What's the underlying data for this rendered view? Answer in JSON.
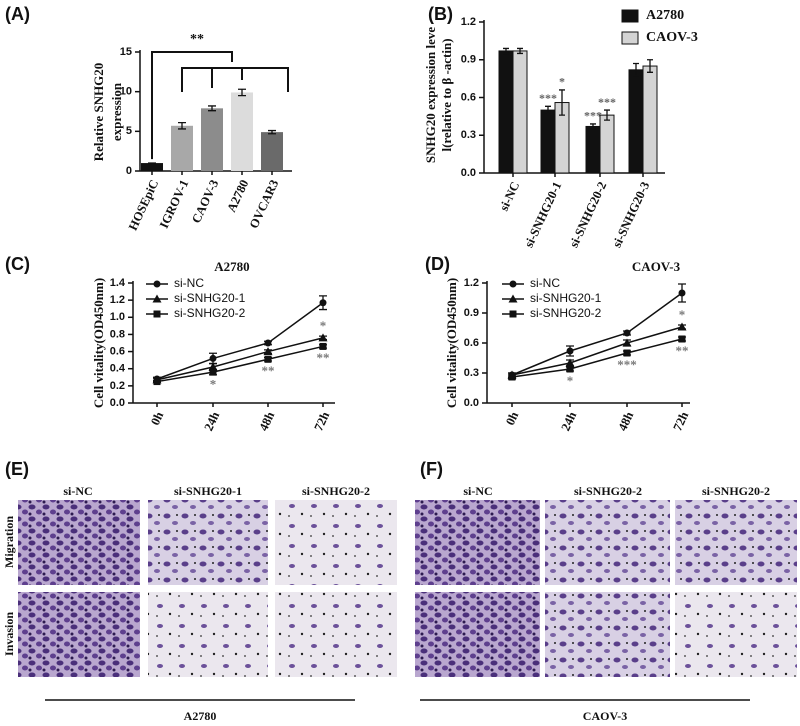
{
  "chart_data": [
    {
      "panel": "(A)",
      "type": "bar",
      "ylabel": [
        "Relative SNHG20",
        "expression"
      ],
      "categories": [
        "HOSEpiC",
        "IGROV-1",
        "CAOV-3",
        "A2780",
        "OVCAR3"
      ],
      "values": [
        1,
        5.7,
        7.9,
        9.9,
        4.9
      ],
      "errors": [
        0,
        0.4,
        0.3,
        0.4,
        0.2
      ],
      "colors": [
        "#111111",
        "#a8a8a8",
        "#8c8c8c",
        "#dcdcdc",
        "#6a6a6a"
      ],
      "ylim": [
        0,
        15
      ],
      "yticks": [
        0,
        5,
        10,
        15
      ],
      "annotations": [
        "**"
      ]
    },
    {
      "panel": "(B)",
      "type": "bar",
      "ylabel": [
        "SNHG20 expression leve",
        "l(relative to β -actin)"
      ],
      "categories": [
        "si-NC",
        "si-SNHG20-1",
        "si-SNHG20-2",
        "si-SNHG20-3"
      ],
      "series": [
        {
          "name": "A2780",
          "color": "#111111",
          "values": [
            0.97,
            0.5,
            0.37,
            0.82
          ],
          "errors": [
            0.02,
            0.03,
            0.02,
            0.05
          ],
          "value_annotations": [
            null,
            "***",
            "***",
            null
          ]
        },
        {
          "name": "CAOV-3",
          "color": "#d4d4d4",
          "values": [
            0.97,
            0.56,
            0.46,
            0.85
          ],
          "errors": [
            0.02,
            0.1,
            0.04,
            0.05
          ],
          "value_annotations": [
            null,
            "*",
            "***",
            null
          ]
        }
      ],
      "ylim": [
        0,
        1.2
      ],
      "yticks": [
        {
          "value": 0,
          "label": "0.0"
        },
        0.3,
        0.6,
        0.9,
        1.2
      ],
      "legend": "upper right"
    },
    {
      "panel": "(C)",
      "type": "line",
      "title": "A2780",
      "ylabel": "Cell vitality(OD450nm)",
      "categories": [
        "0h",
        "24h",
        "48h",
        "72h"
      ],
      "series": [
        {
          "name": "si-NC",
          "color": "#111111",
          "marker": "circle",
          "values": [
            0.28,
            0.52,
            0.7,
            1.17
          ],
          "errors": [
            0.02,
            0.06,
            0.02,
            0.08
          ],
          "value_annotations": [
            null,
            null,
            null,
            null
          ]
        },
        {
          "name": "si-SNHG20-1",
          "color": "#111111",
          "marker": "triangle",
          "values": [
            0.27,
            0.42,
            0.6,
            0.76
          ],
          "errors": [
            0.02,
            0.04,
            0.02,
            0.02
          ],
          "value_annotations": [
            null,
            null,
            null,
            "*"
          ]
        },
        {
          "name": "si-SNHG20-2",
          "color": "#111111",
          "marker": "square",
          "values": [
            0.25,
            0.36,
            0.51,
            0.66
          ],
          "errors": [
            0.01,
            0.03,
            0.02,
            0.02
          ],
          "value_annotations": [
            null,
            "*",
            "**",
            "**"
          ]
        }
      ],
      "ylim": [
        0,
        1.4
      ],
      "yticks": [
        {
          "value": 0,
          "label": "0.0"
        },
        0.2,
        0.4,
        0.6,
        0.8,
        {
          "value": 1,
          "label": "1.0"
        },
        1.2,
        1.4
      ],
      "legend": "upper left"
    },
    {
      "panel": "(D)",
      "type": "line",
      "title": "CAOV-3",
      "ylabel": "Cell vitality(OD450nm)",
      "categories": [
        "0h",
        "24h",
        "48h",
        "72h"
      ],
      "series": [
        {
          "name": "si-NC",
          "color": "#111111",
          "marker": "circle",
          "values": [
            0.28,
            0.52,
            0.7,
            1.1
          ],
          "errors": [
            0.02,
            0.05,
            0.02,
            0.09
          ],
          "value_annotations": [
            null,
            null,
            null,
            null
          ]
        },
        {
          "name": "si-SNHG20-1",
          "color": "#111111",
          "marker": "triangle",
          "values": [
            0.28,
            0.4,
            0.6,
            0.76
          ],
          "errors": [
            0.02,
            0.03,
            0.03,
            0.02
          ],
          "value_annotations": [
            null,
            null,
            null,
            "*"
          ]
        },
        {
          "name": "si-SNHG20-2",
          "color": "#111111",
          "marker": "square",
          "values": [
            0.26,
            0.34,
            0.5,
            0.64
          ],
          "errors": [
            0.02,
            0.02,
            0.02,
            0.02
          ],
          "value_annotations": [
            null,
            "*",
            "***",
            "**"
          ]
        }
      ],
      "ylim": [
        0,
        1.2
      ],
      "yticks": [
        {
          "value": 0,
          "label": "0.0"
        },
        0.3,
        0.6,
        0.9,
        1.2
      ],
      "legend": "upper left"
    }
  ],
  "image_panels": [
    {
      "panel": "(E)",
      "columns": [
        "si-NC",
        "si-SNHG20-1",
        "si-SNHG20-2"
      ],
      "rows": [
        "Migration",
        "Invasion"
      ],
      "cell_line": "A2780"
    },
    {
      "panel": "(F)",
      "columns": [
        "si-NC",
        "si-SNHG20-2",
        "si-SNHG20-2"
      ],
      "rows": [
        "Migration",
        "Invasion"
      ],
      "cell_line": "CAOV-3"
    }
  ]
}
